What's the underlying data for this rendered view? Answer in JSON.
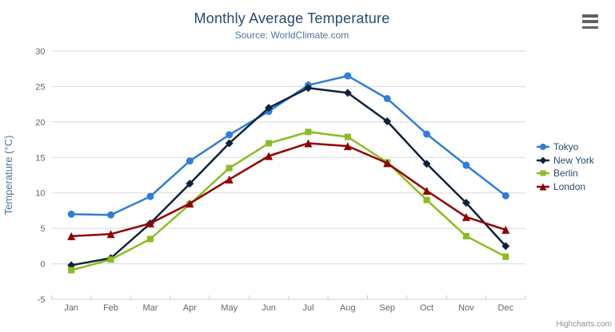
{
  "credit": "Highcharts.com",
  "export_menu": {
    "icon": "hamburger-menu-icon"
  },
  "colors": {
    "title": "#274b6d",
    "subtitle": "#4d759e",
    "axis_label": "#666666",
    "axis_title": "#4d759e",
    "grid_line": "#d8d8d8",
    "axis_line": "#c0d0e0",
    "legend_text": "#274b6d",
    "credit": "#909090",
    "menu_icon": "#616161",
    "background": "#ffffff"
  },
  "chart_data": {
    "type": "line",
    "title": "Monthly Average Temperature",
    "subtitle": "Source: WorldClimate.com",
    "categories": [
      "Jan",
      "Feb",
      "Mar",
      "Apr",
      "May",
      "Jun",
      "Jul",
      "Aug",
      "Sep",
      "Oct",
      "Nov",
      "Dec"
    ],
    "xlabel": "",
    "ylabel": "Temperature (°C)",
    "ylim": [
      -5,
      30
    ],
    "yticks": [
      -5,
      0,
      5,
      10,
      15,
      20,
      25,
      30
    ],
    "grid": true,
    "legend_position": "right",
    "series": [
      {
        "name": "Tokyo",
        "color": "#2f7ed8",
        "marker": "circle",
        "values": [
          7.0,
          6.9,
          9.5,
          14.5,
          18.2,
          21.5,
          25.2,
          26.5,
          23.3,
          18.3,
          13.9,
          9.6
        ]
      },
      {
        "name": "New York",
        "color": "#0d233a",
        "marker": "diamond",
        "values": [
          -0.2,
          0.8,
          5.7,
          11.3,
          17.0,
          22.0,
          24.8,
          24.1,
          20.1,
          14.1,
          8.6,
          2.5
        ]
      },
      {
        "name": "Berlin",
        "color": "#8bbc21",
        "marker": "square",
        "values": [
          -0.9,
          0.6,
          3.5,
          8.4,
          13.5,
          17.0,
          18.6,
          17.9,
          14.3,
          9.0,
          3.9,
          1.0
        ]
      },
      {
        "name": "London",
        "color": "#910000",
        "marker": "triangle",
        "values": [
          3.9,
          4.2,
          5.7,
          8.5,
          11.9,
          15.2,
          17.0,
          16.6,
          14.2,
          10.3,
          6.6,
          4.8
        ]
      }
    ]
  }
}
